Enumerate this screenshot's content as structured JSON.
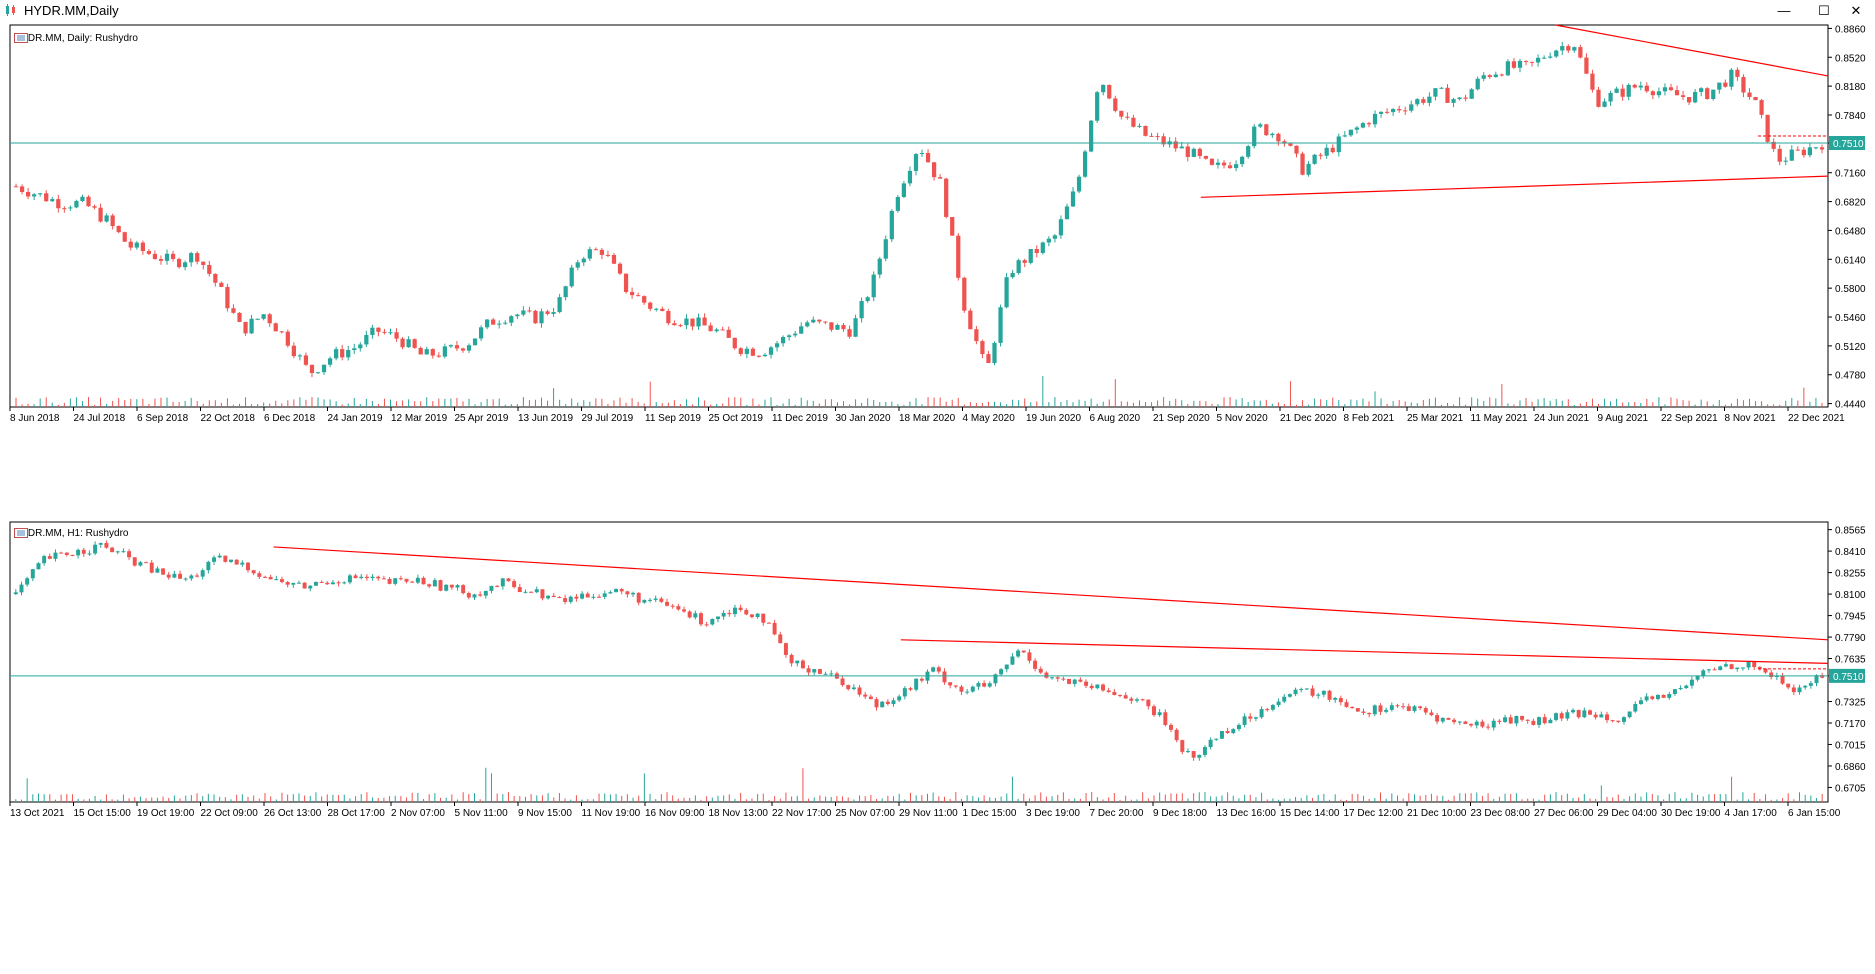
{
  "window": {
    "title": "HYDR.MM,Daily",
    "minimize_glyph": "—",
    "maximize_glyph": "☐",
    "close_glyph": "✕",
    "icon": "chart-app-icon"
  },
  "colors": {
    "bull": "#26a69a",
    "bear": "#ef5350",
    "trendline": "#ff0000",
    "hline": "#26a69a",
    "axis": "#000000"
  },
  "chart_data": [
    {
      "type": "candlestick",
      "label": "HYDR.MM, Daily:  Rushydro",
      "ylim": [
        0.44,
        0.89
      ],
      "y_ticks": [
        "0.8860",
        "0.8520",
        "0.8180",
        "0.7840",
        "0.7510",
        "0.7160",
        "0.6820",
        "0.6480",
        "0.6140",
        "0.5800",
        "0.5460",
        "0.5120",
        "0.4780",
        "0.4440"
      ],
      "x_ticks": [
        "8 Jun 2018",
        "24 Jul 2018",
        "6 Sep 2018",
        "22 Oct 2018",
        "6 Dec 2018",
        "24 Jan 2019",
        "12 Mar 2019",
        "25 Apr 2019",
        "13 Jun 2019",
        "29 Jul 2019",
        "11 Sep 2019",
        "25 Oct 2019",
        "11 Dec 2019",
        "30 Jan 2020",
        "18 Mar 2020",
        "4 May 2020",
        "19 Jun 2020",
        "6 Aug 2020",
        "21 Sep 2020",
        "5 Nov 2020",
        "21 Dec 2020",
        "8 Feb 2021",
        "25 Mar 2021",
        "11 May 2021",
        "24 Jun 2021",
        "9 Aug 2021",
        "22 Sep 2021",
        "8 Nov 2021",
        "22 Dec 2021"
      ],
      "close_anchors": [
        0.7,
        0.69,
        0.68,
        0.68,
        0.66,
        0.63,
        0.62,
        0.61,
        0.62,
        0.58,
        0.53,
        0.55,
        0.52,
        0.48,
        0.5,
        0.51,
        0.53,
        0.52,
        0.5,
        0.505,
        0.515,
        0.54,
        0.55,
        0.545,
        0.56,
        0.62,
        0.625,
        0.58,
        0.56,
        0.545,
        0.54,
        0.53,
        0.51,
        0.505,
        0.52,
        0.54,
        0.535,
        0.53,
        0.59,
        0.69,
        0.75,
        0.7,
        0.56,
        0.48,
        0.6,
        0.62,
        0.64,
        0.7,
        0.83,
        0.78,
        0.76,
        0.75,
        0.74,
        0.72,
        0.73,
        0.77,
        0.76,
        0.72,
        0.74,
        0.76,
        0.78,
        0.79,
        0.8,
        0.81,
        0.8,
        0.83,
        0.84,
        0.84,
        0.86,
        0.87,
        0.8,
        0.81,
        0.82,
        0.81,
        0.805,
        0.81,
        0.83,
        0.8,
        0.73,
        0.74,
        0.751
      ],
      "last_price": "0.7510",
      "hline": 0.751,
      "trendlines": [
        {
          "from": [
            0.85,
            0.89
          ],
          "to": [
            1.0,
            0.83
          ]
        },
        {
          "from": [
            0.655,
            0.687
          ],
          "to": [
            1.0,
            0.712
          ]
        }
      ]
    },
    {
      "type": "candlestick",
      "label": "HYDR.MM, H1:  Rushydro",
      "ylim": [
        0.66,
        0.862
      ],
      "y_ticks": [
        "0.8565",
        "0.8410",
        "0.8255",
        "0.8100",
        "0.7945",
        "0.7790",
        "0.7635",
        "0.7510",
        "0.7325",
        "0.7170",
        "0.7015",
        "0.6860",
        "0.6705"
      ],
      "x_ticks": [
        "13 Oct 2021",
        "15 Oct 15:00",
        "19 Oct 19:00",
        "22 Oct 09:00",
        "26 Oct 13:00",
        "28 Oct 17:00",
        "2 Nov 07:00",
        "5 Nov 11:00",
        "9 Nov 15:00",
        "11 Nov 19:00",
        "16 Nov 09:00",
        "18 Nov 13:00",
        "22 Nov 17:00",
        "25 Nov 07:00",
        "29 Nov 11:00",
        "1 Dec 15:00",
        "3 Dec 19:00",
        "7 Dec 20:00",
        "9 Dec 18:00",
        "13 Dec 16:00",
        "15 Dec 14:00",
        "17 Dec 12:00",
        "21 Dec 10:00",
        "23 Dec 08:00",
        "27 Dec 06:00",
        "29 Dec 04:00",
        "30 Dec 19:00",
        "4 Jan 17:00",
        "6 Jan 15:00"
      ],
      "close_anchors": [
        0.81,
        0.835,
        0.84,
        0.845,
        0.835,
        0.825,
        0.82,
        0.835,
        0.83,
        0.82,
        0.815,
        0.82,
        0.822,
        0.818,
        0.82,
        0.815,
        0.81,
        0.818,
        0.812,
        0.805,
        0.81,
        0.812,
        0.805,
        0.8,
        0.79,
        0.8,
        0.795,
        0.76,
        0.755,
        0.745,
        0.73,
        0.74,
        0.755,
        0.74,
        0.745,
        0.77,
        0.75,
        0.745,
        0.74,
        0.735,
        0.72,
        0.69,
        0.71,
        0.72,
        0.735,
        0.74,
        0.735,
        0.725,
        0.73,
        0.725,
        0.718,
        0.715,
        0.72,
        0.718,
        0.722,
        0.725,
        0.72,
        0.735,
        0.74,
        0.755,
        0.76,
        0.755,
        0.74,
        0.751
      ],
      "last_price": "0.7510",
      "hline": 0.751,
      "trendlines": [
        {
          "from": [
            0.145,
            0.844
          ],
          "to": [
            1.0,
            0.777
          ]
        },
        {
          "from": [
            0.49,
            0.777
          ],
          "to": [
            1.0,
            0.76
          ]
        }
      ]
    }
  ]
}
